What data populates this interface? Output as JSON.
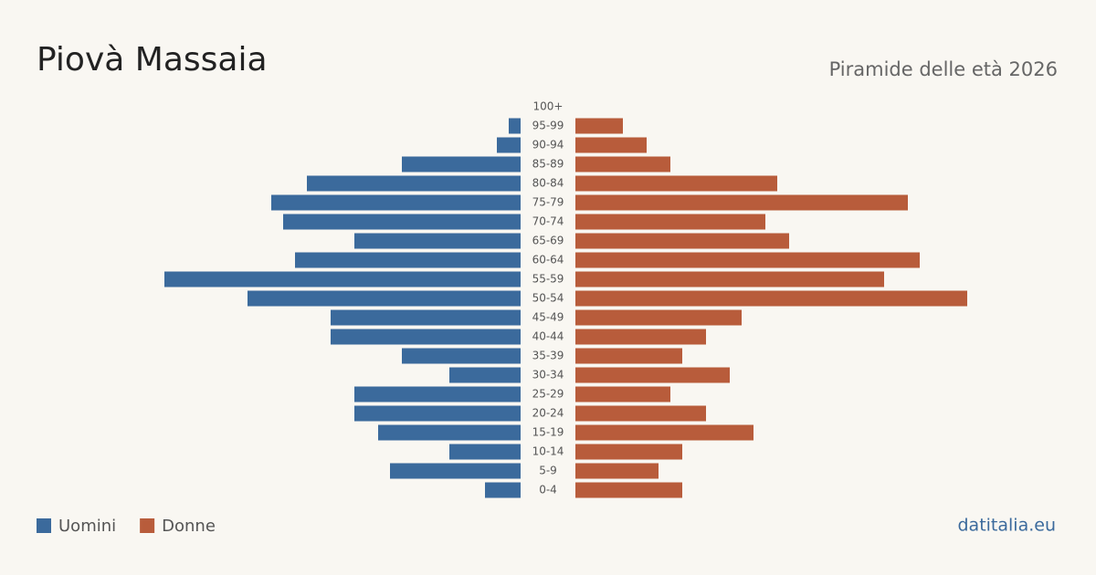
{
  "chart_data": {
    "type": "pyramid",
    "title": "Piovà Massaia",
    "subtitle": "Piramide delle età 2026",
    "categories": [
      "100+",
      "95-99",
      "90-94",
      "85-89",
      "80-84",
      "75-79",
      "70-74",
      "65-69",
      "60-64",
      "55-59",
      "50-54",
      "45-49",
      "40-44",
      "35-39",
      "30-34",
      "25-29",
      "20-24",
      "15-19",
      "10-14",
      "5-9",
      "0-4"
    ],
    "series": [
      {
        "name": "Uomini",
        "color": "#3b6a9c",
        "values": [
          0,
          1,
          2,
          10,
          18,
          21,
          20,
          14,
          19,
          30,
          23,
          16,
          16,
          10,
          6,
          14,
          14,
          12,
          6,
          11,
          3
        ]
      },
      {
        "name": "Donne",
        "color": "#b85c3b",
        "values": [
          0,
          4,
          6,
          8,
          17,
          28,
          16,
          18,
          29,
          26,
          33,
          14,
          11,
          9,
          13,
          8,
          11,
          15,
          9,
          7,
          9
        ]
      }
    ],
    "source": "datitalia.eu"
  }
}
